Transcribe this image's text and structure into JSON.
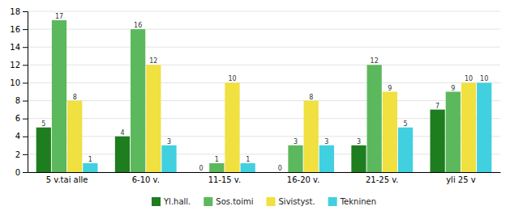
{
  "chart_data": {
    "type": "bar",
    "categories": [
      "5 v.tai alle",
      "6-10 v.",
      "11-15 v.",
      "16-20 v.",
      "21-25 v.",
      "yli 25 v"
    ],
    "series": [
      {
        "name": "Yl.hall.",
        "color": "#1e7d1e",
        "values": [
          5,
          4,
          0,
          0,
          3,
          7
        ]
      },
      {
        "name": "Sos.toimi",
        "color": "#5cb85c",
        "values": [
          17,
          16,
          1,
          3,
          12,
          9
        ]
      },
      {
        "name": "Sivistyst.",
        "color": "#f0e040",
        "values": [
          8,
          12,
          10,
          8,
          9,
          10
        ]
      },
      {
        "name": "Tekninen",
        "color": "#40d0e0",
        "values": [
          1,
          3,
          1,
          3,
          5,
          10
        ]
      }
    ],
    "ylim": [
      0,
      18
    ],
    "yticks": [
      0,
      2,
      4,
      6,
      8,
      10,
      12,
      14,
      16,
      18
    ],
    "grid": true,
    "legend": "bottom",
    "data_labels": true
  }
}
